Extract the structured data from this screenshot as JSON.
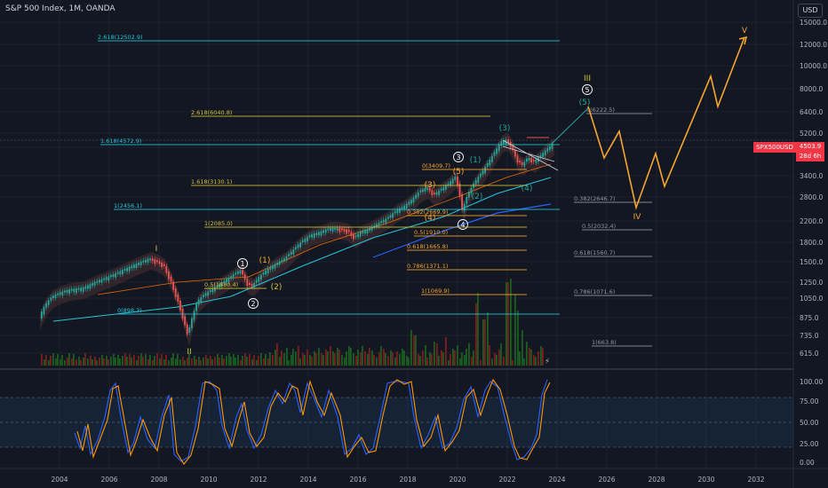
{
  "header": {
    "title": "S&P 500 Index, 1M, OANDA",
    "currency_button": "USD"
  },
  "price_tag": {
    "symbol": "SPX500USD",
    "price": "4503.9",
    "countdown": "28d 6h"
  },
  "colors": {
    "bg": "#131722",
    "up": "#26a69a",
    "down": "#ef5350",
    "orange": "#f7a531",
    "cyan": "#26c6da",
    "yellow": "#d4c23a",
    "white": "#ffffff",
    "grid": "#1e222d",
    "stoch_k": "#2962ff",
    "stoch_d": "#ff9800"
  },
  "price_axis": [
    "15000.0",
    "12000.0",
    "10000.0",
    "8000.0",
    "6400.0",
    "5200.0",
    "4200.0",
    "3400.0",
    "2800.0",
    "2200.0",
    "1800.0",
    "1500.0",
    "1250.0",
    "1050.0",
    "875.0",
    "735.0",
    "615.0"
  ],
  "stoch_axis": [
    "100.00",
    "75.00",
    "50.00",
    "25.00",
    "0.00"
  ],
  "time_axis": [
    "2004",
    "2006",
    "2008",
    "2010",
    "2012",
    "2014",
    "2016",
    "2018",
    "2020",
    "2022",
    "2024",
    "2026",
    "2028",
    "2030",
    "2032"
  ],
  "fib_levels": [
    {
      "label": "2.618(12502.9)",
      "color": "cyan"
    },
    {
      "label": "2.618(6040.8)",
      "color": "yellow"
    },
    {
      "label": "1.618(4572.9)",
      "color": "cyan"
    },
    {
      "label": "1.618(3130.1)",
      "color": "yellow"
    },
    {
      "label": "1(2456.1)",
      "color": "cyan"
    },
    {
      "label": "1(2085.0)",
      "color": "yellow"
    },
    {
      "label": "0.5(1880.4)",
      "color": "yellow"
    },
    {
      "label": "0(898.3)",
      "color": "cyan"
    },
    {
      "label": "0(3409.7)",
      "color": "orange"
    },
    {
      "label": "0.382(2669.9)",
      "color": "orange"
    },
    {
      "label": "0.5(1910.0)",
      "color": "orange"
    },
    {
      "label": "0.618(1665.8)",
      "color": "orange"
    },
    {
      "label": "0.786(1371.1)",
      "color": "orange"
    },
    {
      "label": "1(1069.9)",
      "color": "orange"
    },
    {
      "label": "0(6222.5)",
      "color": "gray"
    },
    {
      "label": "0.382(2646.7)",
      "color": "gray"
    },
    {
      "label": "0.5(2032.4)",
      "color": "gray"
    },
    {
      "label": "0.618(1560.7)",
      "color": "gray"
    },
    {
      "label": "0.786(1071.6)",
      "color": "gray"
    },
    {
      "label": "1(663.8)",
      "color": "gray"
    }
  ],
  "wave_labels": [
    {
      "text": "I",
      "color": "yellow"
    },
    {
      "text": "II",
      "color": "yellow"
    },
    {
      "text": "III",
      "color": "yellow"
    },
    {
      "text": "IV",
      "color": "orange"
    },
    {
      "text": "V",
      "color": "orange"
    },
    {
      "text": "(1)",
      "color": "orange"
    },
    {
      "text": "(2)",
      "color": "yellow"
    },
    {
      "text": "(3)",
      "color": "orange"
    },
    {
      "text": "(4)",
      "color": "orange"
    },
    {
      "text": "(5)",
      "color": "orange"
    },
    {
      "text": "(1)",
      "color": "up"
    },
    {
      "text": "(2)",
      "color": "up"
    },
    {
      "text": "(3)",
      "color": "up"
    },
    {
      "text": "(4)",
      "color": "up"
    },
    {
      "text": "(5)",
      "color": "up"
    },
    {
      "text": "1",
      "color": "white",
      "circle": true
    },
    {
      "text": "2",
      "color": "white",
      "circle": true
    },
    {
      "text": "3",
      "color": "white",
      "circle": true
    },
    {
      "text": "4",
      "color": "white",
      "circle": true
    },
    {
      "text": "5",
      "color": "white",
      "circle": true
    }
  ]
}
